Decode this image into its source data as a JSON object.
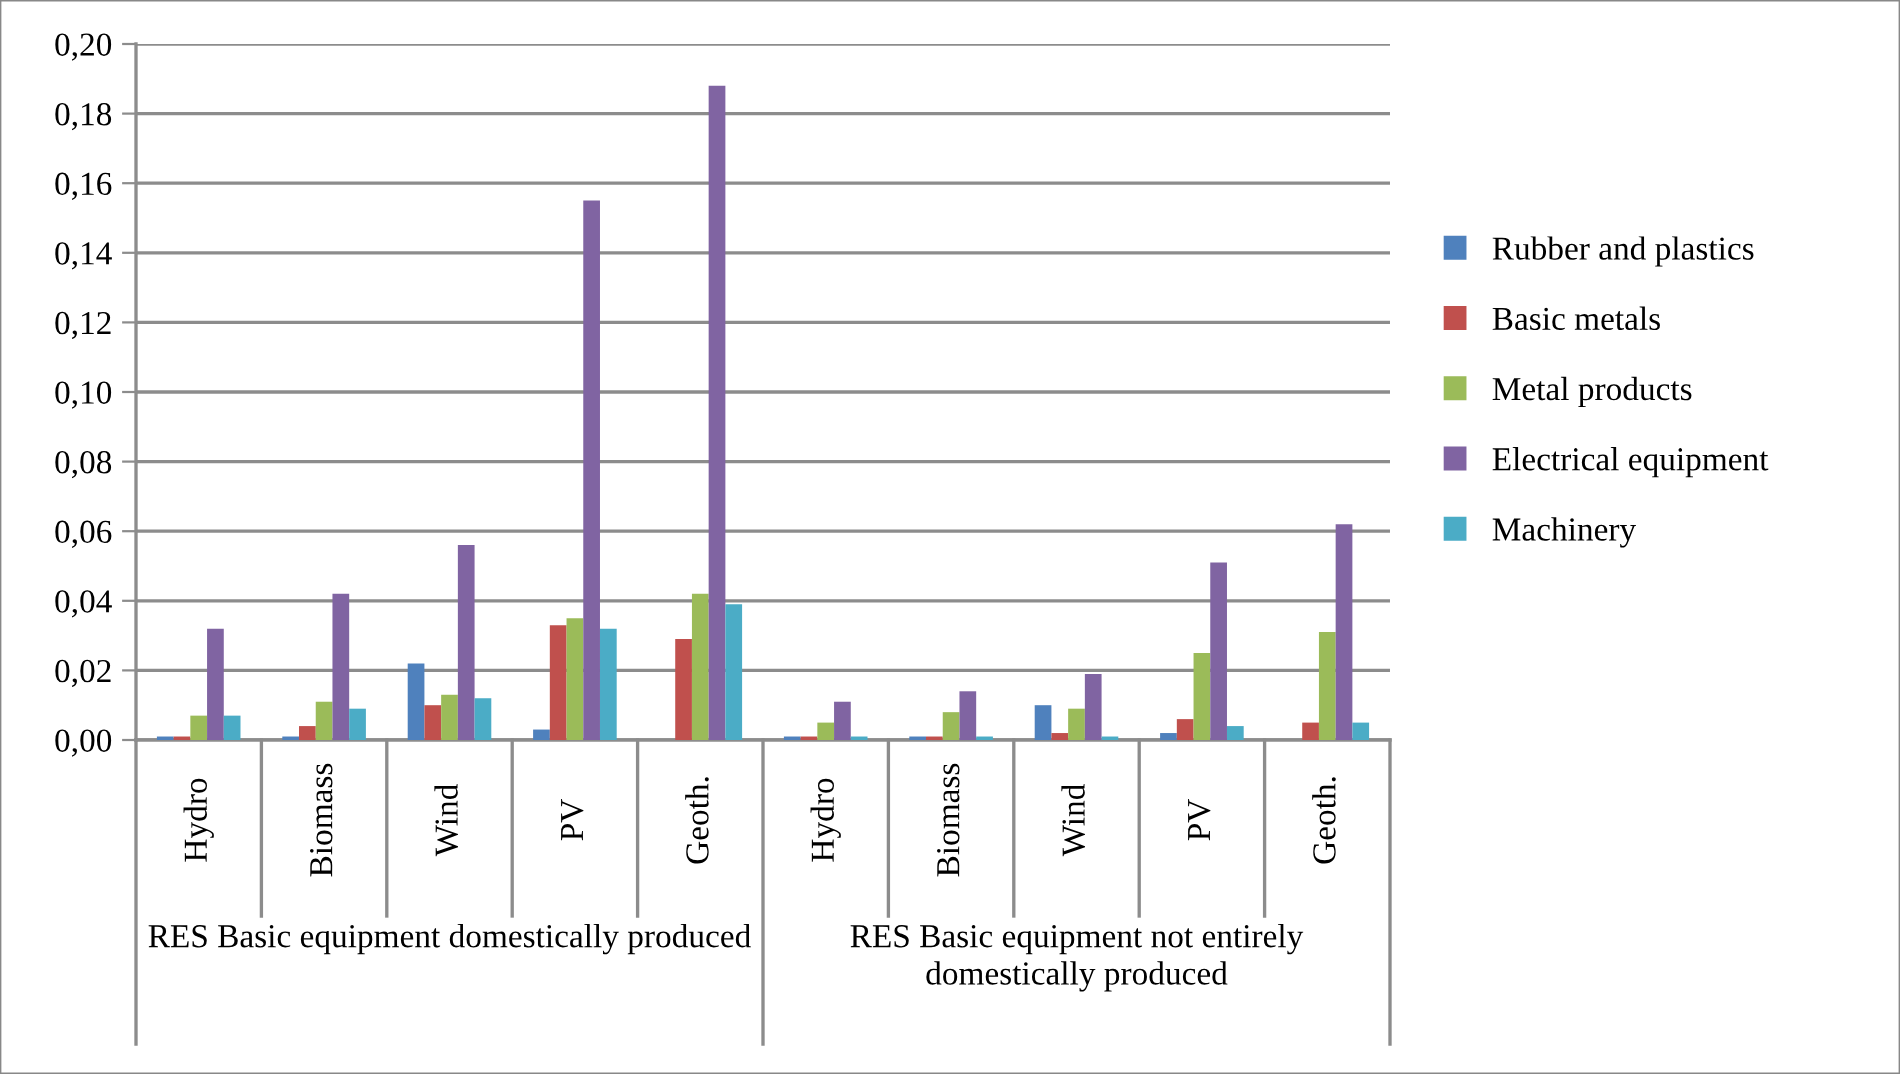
{
  "chart_data": {
    "type": "bar",
    "categories": [
      "Hydro",
      "Biomass",
      "Wind",
      "PV",
      "Geoth.",
      "Hydro",
      "Biomass",
      "Wind",
      "PV",
      "Geoth."
    ],
    "series": [
      {
        "name": "Rubber and plastics",
        "color": "#4f81bd",
        "values": [
          0.001,
          0.001,
          0.022,
          0.003,
          0,
          0.001,
          0.001,
          0.01,
          0.002,
          0
        ]
      },
      {
        "name": "Basic metals",
        "color": "#c0504d",
        "values": [
          0.001,
          0.004,
          0.01,
          0.033,
          0.029,
          0.001,
          0.001,
          0.002,
          0.006,
          0.005
        ]
      },
      {
        "name": "Metal products",
        "color": "#9bbb59",
        "values": [
          0.007,
          0.011,
          0.013,
          0.035,
          0.042,
          0.005,
          0.008,
          0.009,
          0.025,
          0.031
        ]
      },
      {
        "name": "Electrical equipment",
        "color": "#8064a2",
        "values": [
          0.032,
          0.042,
          0.056,
          0.155,
          0.188,
          0.011,
          0.014,
          0.019,
          0.051,
          0.062
        ]
      },
      {
        "name": "Machinery",
        "color": "#4bacc6",
        "values": [
          0.007,
          0.009,
          0.012,
          0.032,
          0.039,
          0.001,
          0.001,
          0.001,
          0.004,
          0.005
        ]
      }
    ],
    "ylim": [
      0,
      0.2
    ],
    "yticks": [
      {
        "value": 0,
        "label": "0,00"
      },
      {
        "value": 0.02,
        "label": "0,02"
      },
      {
        "value": 0.04,
        "label": "0,04"
      },
      {
        "value": 0.06,
        "label": "0,06"
      },
      {
        "value": 0.08,
        "label": "0,08"
      },
      {
        "value": 0.1,
        "label": "0,10"
      },
      {
        "value": 0.12,
        "label": "0,12"
      },
      {
        "value": 0.14,
        "label": "0,14"
      },
      {
        "value": 0.16,
        "label": "0,16"
      },
      {
        "value": 0.18,
        "label": "0,18"
      },
      {
        "value": 0.2,
        "label": "0,20"
      }
    ],
    "grid": "y",
    "legend": "right",
    "annotations": [
      "RES Basic equipment domestically produced",
      "RES Basic equipment not entirely domestically produced"
    ]
  }
}
